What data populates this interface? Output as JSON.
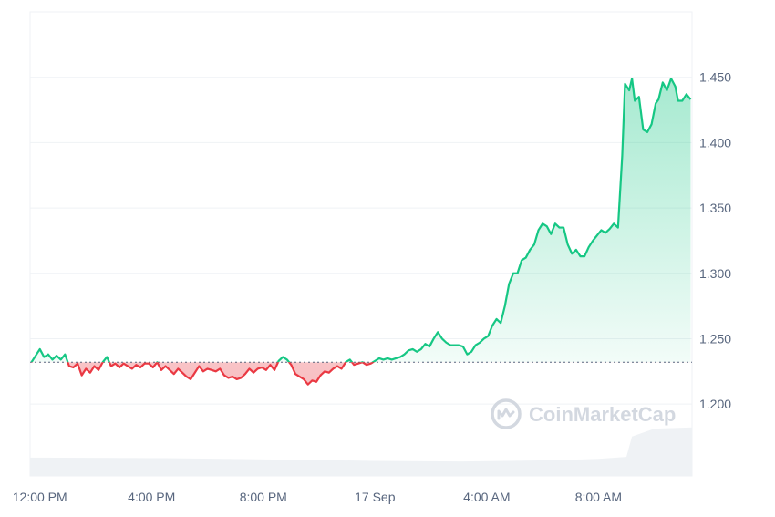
{
  "chart_data": {
    "type": "line",
    "baseline": 1.232,
    "ylim": [
      1.145,
      1.5
    ],
    "yticks": [
      1.2,
      1.25,
      1.3,
      1.35,
      1.4,
      1.45
    ],
    "ytick_labels": [
      "1.200",
      "1.250",
      "1.300",
      "1.350",
      "1.400",
      "1.450"
    ],
    "x_range_hours": [
      -0.35,
      23.35
    ],
    "xticks": [
      {
        "label": "12:00 PM",
        "hour": 0
      },
      {
        "label": "4:00 PM",
        "hour": 4
      },
      {
        "label": "8:00 PM",
        "hour": 8
      },
      {
        "label": "17 Sep",
        "hour": 12
      },
      {
        "label": "4:00 AM",
        "hour": 16
      },
      {
        "label": "8:00 AM",
        "hour": 20
      }
    ],
    "colors": {
      "up": "#16c784",
      "down": "#ea3943",
      "grid": "#eff2f5",
      "baseline": "#58667e",
      "volume": "#eff2f5"
    },
    "series": [
      {
        "values": [
          [
            -0.3,
            1.232
          ],
          [
            -0.15,
            1.237
          ],
          [
            0,
            1.242
          ],
          [
            0.15,
            1.236
          ],
          [
            0.3,
            1.238
          ],
          [
            0.45,
            1.234
          ],
          [
            0.6,
            1.237
          ],
          [
            0.75,
            1.234
          ],
          [
            0.9,
            1.238
          ],
          [
            1.05,
            1.229
          ],
          [
            1.2,
            1.228
          ],
          [
            1.35,
            1.231
          ],
          [
            1.5,
            1.222
          ],
          [
            1.65,
            1.227
          ],
          [
            1.8,
            1.224
          ],
          [
            1.95,
            1.229
          ],
          [
            2.1,
            1.226
          ],
          [
            2.25,
            1.232
          ],
          [
            2.4,
            1.236
          ],
          [
            2.55,
            1.229
          ],
          [
            2.7,
            1.231
          ],
          [
            2.85,
            1.228
          ],
          [
            3.0,
            1.231
          ],
          [
            3.15,
            1.229
          ],
          [
            3.3,
            1.227
          ],
          [
            3.45,
            1.23
          ],
          [
            3.6,
            1.228
          ],
          [
            3.75,
            1.231
          ],
          [
            3.9,
            1.231
          ],
          [
            4.05,
            1.228
          ],
          [
            4.2,
            1.232
          ],
          [
            4.35,
            1.226
          ],
          [
            4.5,
            1.229
          ],
          [
            4.65,
            1.226
          ],
          [
            4.8,
            1.223
          ],
          [
            4.95,
            1.227
          ],
          [
            5.1,
            1.224
          ],
          [
            5.25,
            1.221
          ],
          [
            5.4,
            1.219
          ],
          [
            5.55,
            1.224
          ],
          [
            5.7,
            1.229
          ],
          [
            5.85,
            1.225
          ],
          [
            6.0,
            1.227
          ],
          [
            6.15,
            1.226
          ],
          [
            6.3,
            1.225
          ],
          [
            6.45,
            1.227
          ],
          [
            6.6,
            1.222
          ],
          [
            6.75,
            1.22
          ],
          [
            6.9,
            1.221
          ],
          [
            7.05,
            1.219
          ],
          [
            7.2,
            1.22
          ],
          [
            7.35,
            1.223
          ],
          [
            7.5,
            1.227
          ],
          [
            7.65,
            1.224
          ],
          [
            7.8,
            1.227
          ],
          [
            7.95,
            1.228
          ],
          [
            8.1,
            1.226
          ],
          [
            8.25,
            1.23
          ],
          [
            8.4,
            1.226
          ],
          [
            8.55,
            1.233
          ],
          [
            8.7,
            1.236
          ],
          [
            8.85,
            1.234
          ],
          [
            9.0,
            1.23
          ],
          [
            9.15,
            1.223
          ],
          [
            9.3,
            1.221
          ],
          [
            9.45,
            1.219
          ],
          [
            9.6,
            1.215
          ],
          [
            9.75,
            1.218
          ],
          [
            9.9,
            1.217
          ],
          [
            10.05,
            1.222
          ],
          [
            10.2,
            1.225
          ],
          [
            10.35,
            1.224
          ],
          [
            10.5,
            1.227
          ],
          [
            10.65,
            1.229
          ],
          [
            10.8,
            1.227
          ],
          [
            10.95,
            1.232
          ],
          [
            11.1,
            1.234
          ],
          [
            11.25,
            1.23
          ],
          [
            11.4,
            1.231
          ],
          [
            11.55,
            1.232
          ],
          [
            11.7,
            1.23
          ],
          [
            11.85,
            1.231
          ],
          [
            12.0,
            1.233
          ],
          [
            12.15,
            1.235
          ],
          [
            12.3,
            1.234
          ],
          [
            12.45,
            1.235
          ],
          [
            12.6,
            1.234
          ],
          [
            12.75,
            1.235
          ],
          [
            12.9,
            1.236
          ],
          [
            13.05,
            1.238
          ],
          [
            13.2,
            1.241
          ],
          [
            13.35,
            1.242
          ],
          [
            13.5,
            1.24
          ],
          [
            13.65,
            1.242
          ],
          [
            13.8,
            1.246
          ],
          [
            13.95,
            1.244
          ],
          [
            14.1,
            1.25
          ],
          [
            14.25,
            1.255
          ],
          [
            14.4,
            1.25
          ],
          [
            14.55,
            1.247
          ],
          [
            14.7,
            1.245
          ],
          [
            14.85,
            1.245
          ],
          [
            15.0,
            1.245
          ],
          [
            15.15,
            1.244
          ],
          [
            15.3,
            1.238
          ],
          [
            15.45,
            1.24
          ],
          [
            15.6,
            1.245
          ],
          [
            15.75,
            1.247
          ],
          [
            15.9,
            1.25
          ],
          [
            16.05,
            1.252
          ],
          [
            16.2,
            1.26
          ],
          [
            16.35,
            1.265
          ],
          [
            16.5,
            1.262
          ],
          [
            16.65,
            1.275
          ],
          [
            16.8,
            1.292
          ],
          [
            16.95,
            1.3
          ],
          [
            17.1,
            1.3
          ],
          [
            17.25,
            1.31
          ],
          [
            17.4,
            1.312
          ],
          [
            17.55,
            1.318
          ],
          [
            17.7,
            1.322
          ],
          [
            17.85,
            1.333
          ],
          [
            18.0,
            1.338
          ],
          [
            18.15,
            1.336
          ],
          [
            18.3,
            1.33
          ],
          [
            18.45,
            1.338
          ],
          [
            18.6,
            1.335
          ],
          [
            18.75,
            1.335
          ],
          [
            18.9,
            1.322
          ],
          [
            19.05,
            1.315
          ],
          [
            19.2,
            1.318
          ],
          [
            19.35,
            1.313
          ],
          [
            19.5,
            1.313
          ],
          [
            19.65,
            1.32
          ],
          [
            19.8,
            1.325
          ],
          [
            19.95,
            1.329
          ],
          [
            20.1,
            1.333
          ],
          [
            20.25,
            1.331
          ],
          [
            20.4,
            1.334
          ],
          [
            20.55,
            1.338
          ],
          [
            20.7,
            1.335
          ],
          [
            20.85,
            1.39
          ],
          [
            20.95,
            1.445
          ],
          [
            21.1,
            1.44
          ],
          [
            21.2,
            1.449
          ],
          [
            21.3,
            1.432
          ],
          [
            21.45,
            1.435
          ],
          [
            21.6,
            1.41
          ],
          [
            21.75,
            1.408
          ],
          [
            21.9,
            1.414
          ],
          [
            22.05,
            1.43
          ],
          [
            22.15,
            1.433
          ],
          [
            22.3,
            1.446
          ],
          [
            22.45,
            1.44
          ],
          [
            22.6,
            1.449
          ],
          [
            22.75,
            1.443
          ],
          [
            22.85,
            1.432
          ],
          [
            23.0,
            1.432
          ],
          [
            23.15,
            1.437
          ],
          [
            23.3,
            1.433
          ]
        ]
      }
    ],
    "volume_heights": [
      [
        -0.35,
        0.28
      ],
      [
        4.5,
        0.27
      ],
      [
        6.5,
        0.26
      ],
      [
        12.0,
        0.23
      ],
      [
        15.0,
        0.22
      ],
      [
        18.5,
        0.24
      ],
      [
        20.0,
        0.26
      ],
      [
        21.0,
        0.29
      ],
      [
        21.2,
        0.6
      ],
      [
        22.0,
        0.72
      ],
      [
        23.35,
        0.74
      ]
    ]
  },
  "watermark": {
    "brand": "CoinMarketCap",
    "icon": "coinmarketcap-logo-icon"
  }
}
